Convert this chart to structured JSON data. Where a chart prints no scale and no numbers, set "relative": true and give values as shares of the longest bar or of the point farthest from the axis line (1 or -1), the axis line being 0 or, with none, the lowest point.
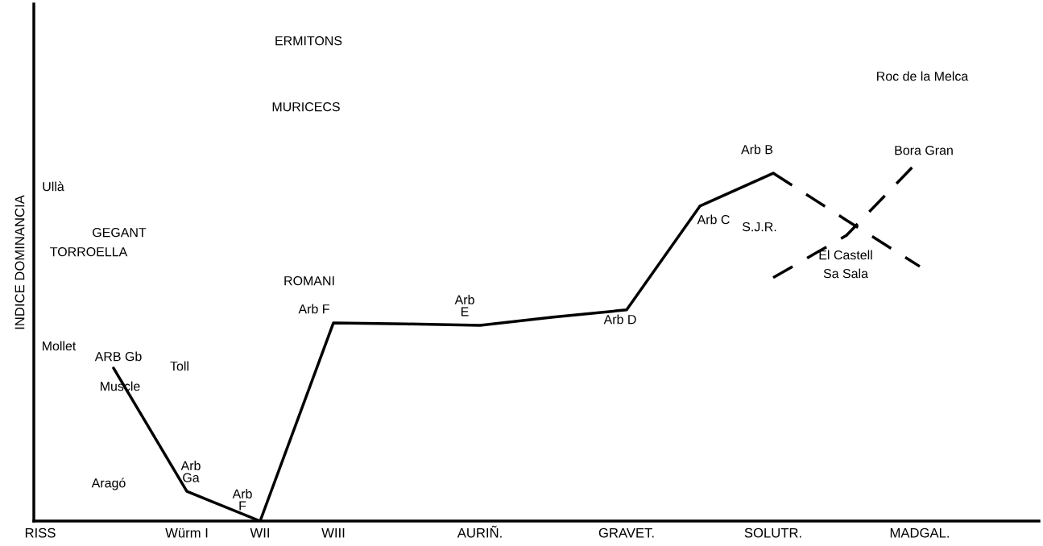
{
  "chart_data": {
    "type": "line",
    "relative": true,
    "ylabel": "INDICE DOMINANCIA",
    "categories": [
      "RISS",
      null,
      "Würm I",
      "WII",
      "WIII",
      null,
      "AURIÑ.",
      null,
      "GRAVET.",
      null,
      "SOLUTR.",
      null,
      "MADGAL."
    ],
    "marker": "none",
    "series": [
      {
        "color": "#000000",
        "line_style": "solid",
        "values": [
          null,
          0.423,
          0.082,
          0.0,
          0.548,
          0.545,
          0.541,
          0.564,
          0.584,
          0.871,
          0.962,
          null,
          null
        ]
      },
      {
        "color": "#000000",
        "line_style": "dashed",
        "values": [
          null,
          null,
          null,
          null,
          null,
          null,
          null,
          null,
          null,
          null,
          0.962,
          0.832,
          0.704
        ]
      },
      {
        "color": "#000000",
        "line_style": "dashed",
        "values": [
          null,
          null,
          null,
          null,
          null,
          null,
          null,
          null,
          null,
          null,
          0.673,
          0.79,
          1.0
        ]
      }
    ],
    "annotations": [
      "ERMITONS",
      "MURICECS",
      "Roc de la Melca",
      "Arb B",
      "Bora Gran",
      "Ullà",
      "GEGANT",
      "TORROELLA",
      "S.J.R.",
      "Arb C",
      "El Castell",
      "Sa Sala",
      "ROMANI",
      "Arb F",
      "Arb\nE",
      "Arb D",
      "Mollet",
      "ARB Gb",
      "Toll",
      "Muscle",
      "Arb\nGa",
      "Aragó",
      "Arb\nF"
    ]
  }
}
